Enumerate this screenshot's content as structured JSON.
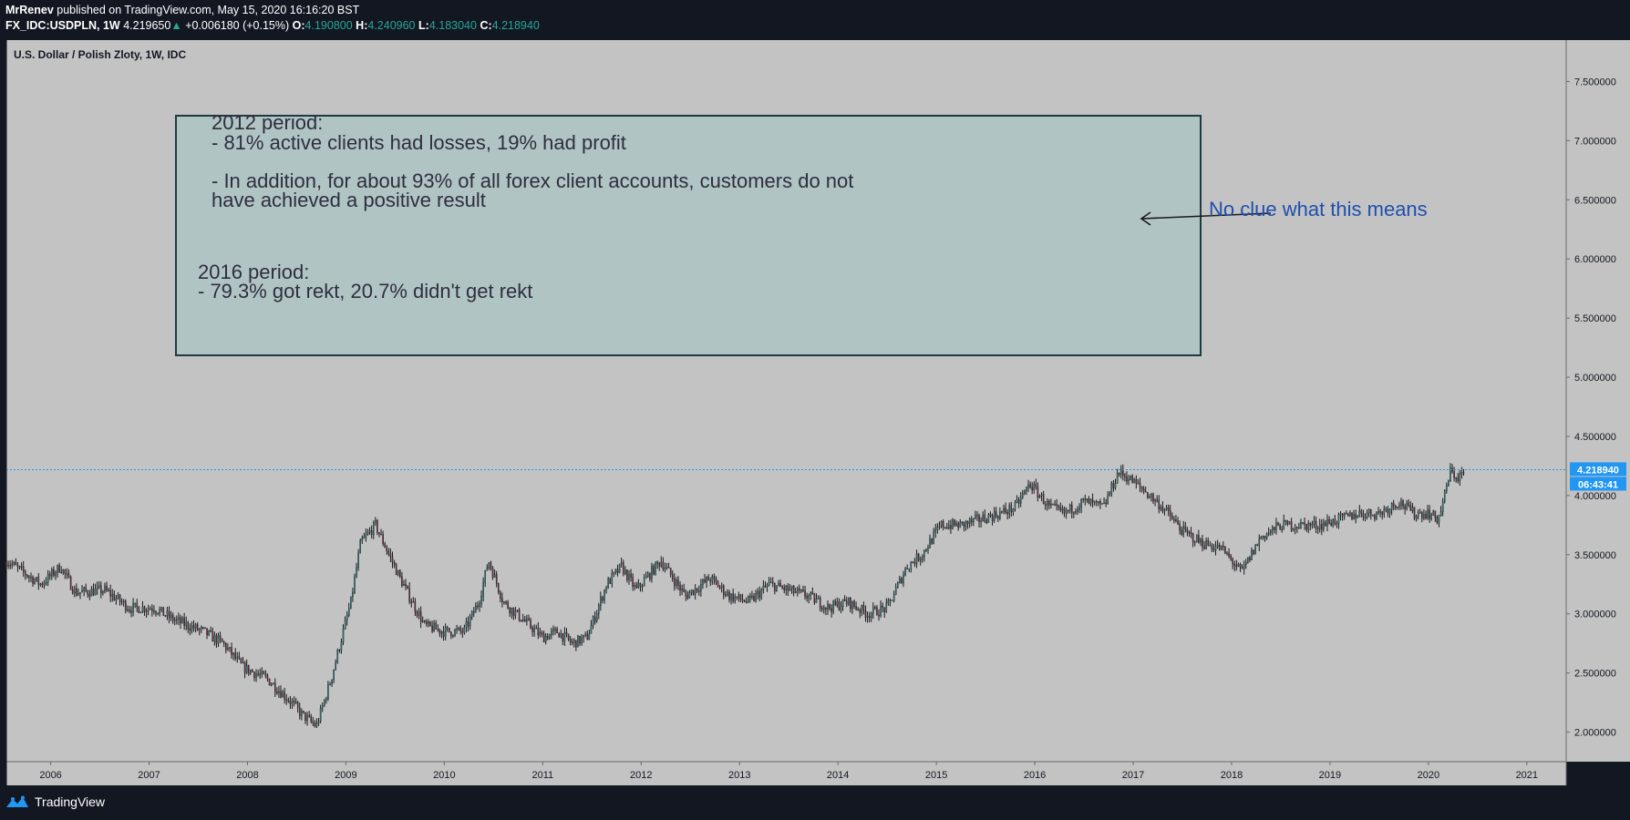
{
  "header": {
    "author": "MrRenev",
    "published": "published on TradingView.com, May 15, 2020 16:16:20 BST",
    "symbol": "FX_IDC:USDPLN, 1W",
    "last": "4.219650",
    "change": "+0.006180 (+0.15%)",
    "open_label": "O:",
    "open": "4.190800",
    "high_label": "H:",
    "high": "4.240960",
    "low_label": "L:",
    "low": "4.183040",
    "close_label": "C:",
    "close": "4.218940"
  },
  "footer": {
    "brand": "TradingView"
  },
  "annotations": {
    "box_lines_2012": [
      "2012 period:",
      "- 81% active clients had losses, 19% had profit",
      "",
      "- In addition, for about 93% of all forex client accounts, customers do not",
      "have achieved a positive result"
    ],
    "box_lines_2016": [
      "2016 period:",
      "- 79.3% got rekt, 20.7% didn't get rekt"
    ],
    "arrow_note": "No clue what this means"
  },
  "chart_data": {
    "type": "line",
    "title": "U.S. Dollar / Polish Zloty, 1W, IDC",
    "style": "candlestick",
    "x_ticks": [
      "2006",
      "2007",
      "2008",
      "2009",
      "2010",
      "2011",
      "2012",
      "2013",
      "2014",
      "2015",
      "2016",
      "2017",
      "2018",
      "2019",
      "2020",
      "2021"
    ],
    "y_ticks": [
      "2.000000",
      "2.500000",
      "3.000000",
      "3.500000",
      "4.000000",
      "4.500000",
      "5.000000",
      "5.500000",
      "6.000000",
      "6.500000",
      "7.000000",
      "7.500000"
    ],
    "ylim": [
      1.75,
      7.85
    ],
    "xlim": [
      2005.55,
      2021.4
    ],
    "last_price_label": "4.218940",
    "countdown_label": "06:43:41",
    "series": [
      {
        "x": [
          2005.55,
          2005.9,
          2006.1,
          2006.25,
          2006.55,
          2006.8,
          2007.05,
          2007.25,
          2007.55,
          2007.75,
          2007.95,
          2008.2,
          2008.45,
          2008.55,
          2008.7,
          2008.85,
          2009.05,
          2009.15,
          2009.3,
          2009.55,
          2009.8,
          2010.0,
          2010.2,
          2010.35,
          2010.45,
          2010.6,
          2010.8,
          2011.0,
          2011.15,
          2011.3,
          2011.45,
          2011.65,
          2011.8,
          2011.95,
          2012.2,
          2012.45,
          2012.7,
          2012.9,
          2013.1,
          2013.3,
          2013.5,
          2013.7,
          2013.9,
          2014.1,
          2014.3,
          2014.5,
          2014.7,
          2014.85,
          2015.05,
          2015.25,
          2015.45,
          2015.65,
          2015.8,
          2015.95,
          2016.15,
          2016.3,
          2016.5,
          2016.7,
          2016.85,
          2016.95,
          2017.1,
          2017.3,
          2017.5,
          2017.7,
          2017.9,
          2018.1,
          2018.3,
          2018.5,
          2018.7,
          2018.9,
          2019.1,
          2019.3,
          2019.5,
          2019.7,
          2019.85,
          2020.0,
          2020.1,
          2020.15,
          2020.22,
          2020.3,
          2020.37
        ],
        "y": [
          3.45,
          3.25,
          3.4,
          3.18,
          3.2,
          3.05,
          3.05,
          2.95,
          2.85,
          2.75,
          2.55,
          2.45,
          2.25,
          2.15,
          2.05,
          2.45,
          3.1,
          3.6,
          3.75,
          3.3,
          2.9,
          2.85,
          2.85,
          3.1,
          3.45,
          3.1,
          2.95,
          2.8,
          2.85,
          2.75,
          2.8,
          3.25,
          3.4,
          3.2,
          3.45,
          3.15,
          3.3,
          3.15,
          3.1,
          3.25,
          3.2,
          3.15,
          3.05,
          3.1,
          3.0,
          3.05,
          3.4,
          3.5,
          3.75,
          3.75,
          3.8,
          3.85,
          3.9,
          4.1,
          3.9,
          3.85,
          3.95,
          3.9,
          4.2,
          4.15,
          4.05,
          3.9,
          3.7,
          3.6,
          3.55,
          3.35,
          3.65,
          3.75,
          3.75,
          3.75,
          3.8,
          3.85,
          3.85,
          3.95,
          3.85,
          3.85,
          3.8,
          3.95,
          4.2,
          4.15,
          4.2
        ]
      }
    ]
  }
}
